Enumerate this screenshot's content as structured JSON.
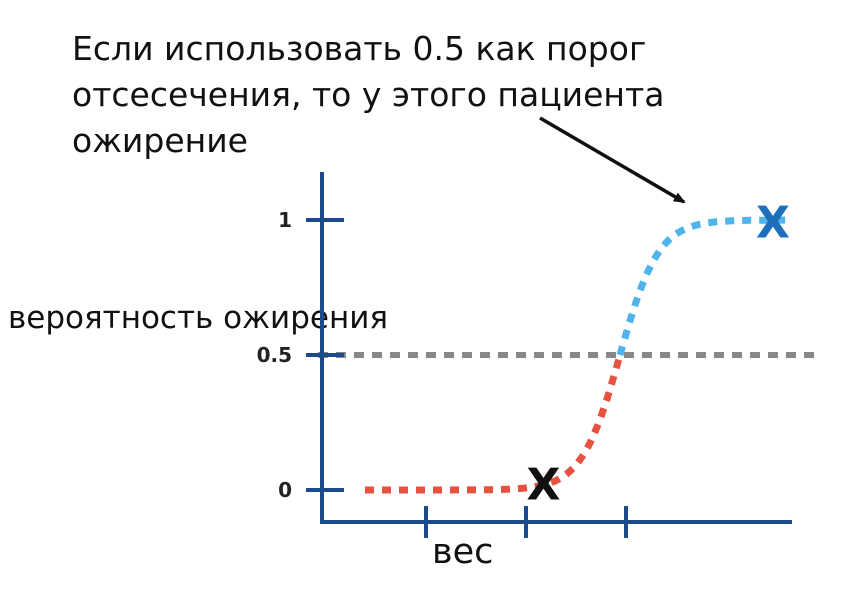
{
  "chart_data": {
    "type": "line",
    "annotation": "Если использовать 0.5 как порог отсесечения, то у этого пациента ожирение",
    "ylabel": "вероятность ожирения",
    "xlabel": "вес",
    "ylim": [
      0,
      1
    ],
    "yticks": [
      "0",
      "0.5",
      "1"
    ],
    "threshold": 0.5,
    "x_range": [
      0,
      10
    ],
    "curve": {
      "name": "",
      "midpoint": 6.0,
      "steepness": 2.2
    },
    "below_color": "#e8513f",
    "above_color": "#4fb3ec",
    "threshold_color": "#888888",
    "axis_color": "#1c4a8c",
    "points": [
      {
        "label": "X",
        "x": 4.2,
        "y": 0.02,
        "color": "#111111"
      },
      {
        "label": "X",
        "x": 9.6,
        "y": 0.99,
        "color": "#1c6fb8"
      }
    ]
  }
}
